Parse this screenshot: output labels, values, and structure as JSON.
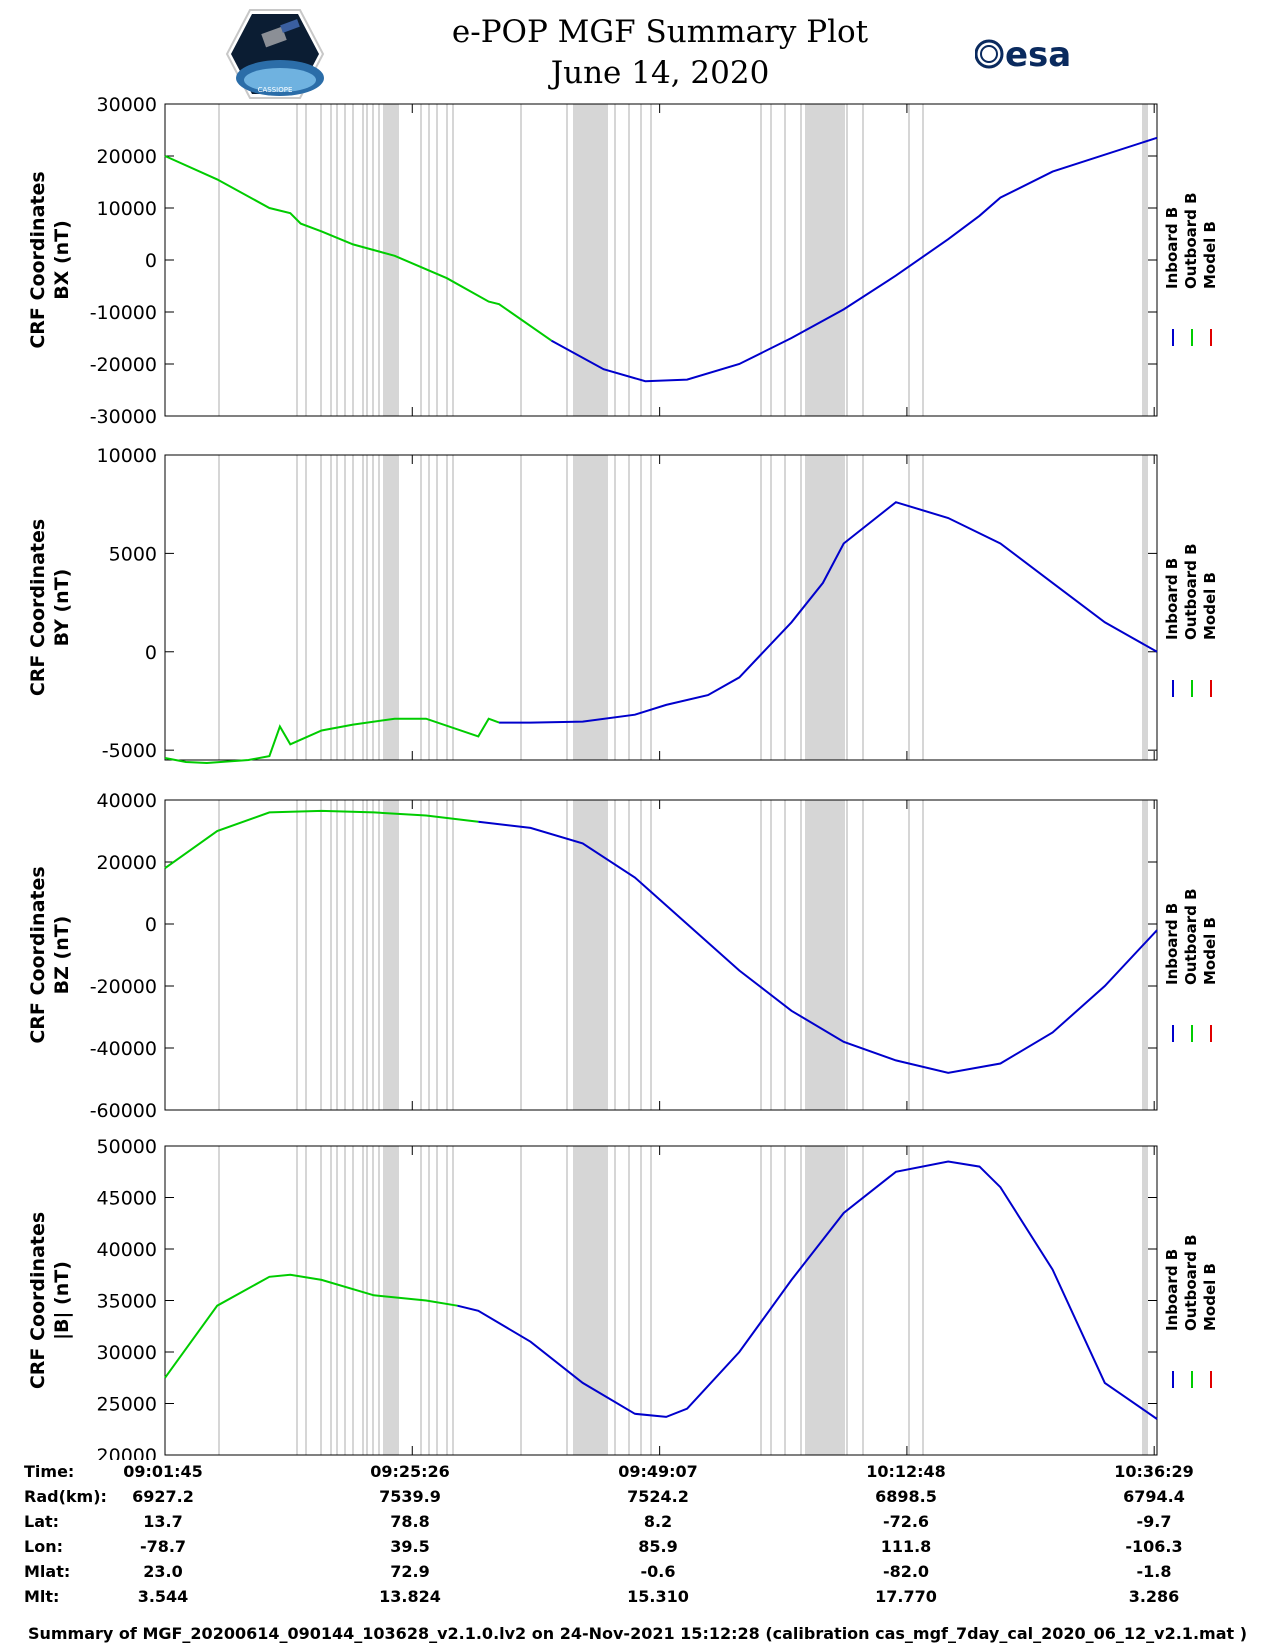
{
  "title": {
    "line1": "e-POP MGF Summary Plot",
    "line2": "June 14, 2020"
  },
  "logos": {
    "left": "CASSIOPE",
    "right": "esa"
  },
  "colors": {
    "inboard": "#0000cc",
    "outboard": "#00cc00",
    "model": "#e00000",
    "shade": "#d6d6d6"
  },
  "legend": [
    "Inboard B",
    "Outboard B",
    "Model B"
  ],
  "time_ticks": [
    "09:01:45",
    "09:25:26",
    "09:49:07",
    "10:12:48",
    "10:36:29"
  ],
  "info_table": [
    {
      "label": "Time:",
      "values": [
        "09:01:45",
        "09:25:26",
        "09:49:07",
        "10:12:48",
        "10:36:29"
      ]
    },
    {
      "label": "Rad(km):",
      "values": [
        "6927.2",
        "7539.9",
        "7524.2",
        "6898.5",
        "6794.4"
      ]
    },
    {
      "label": "Lat:",
      "values": [
        "13.7",
        "78.8",
        "8.2",
        "-72.6",
        "-9.7"
      ]
    },
    {
      "label": "Lon:",
      "values": [
        "-78.7",
        "39.5",
        "85.9",
        "111.8",
        "-106.3"
      ]
    },
    {
      "label": "Mlat:",
      "values": [
        "23.0",
        "72.9",
        "-0.6",
        "-82.0",
        "-1.8"
      ]
    },
    {
      "label": "Mlt:",
      "values": [
        "3.544",
        "13.824",
        "15.310",
        "17.770",
        "3.286"
      ]
    }
  ],
  "caption": "Summary of MGF_20200614_090144_103628_v2.1.0.lv2 on 24-Nov-2021 15:12:28 (calibration cas_mgf_7day_cal_2020_06_12_v2.1.mat )",
  "chart_data": [
    {
      "type": "line",
      "ylabel": [
        "CRF Coordinates",
        "BX (nT)"
      ],
      "ylim": [
        -30000,
        30000
      ],
      "yticks": [
        "30000",
        "20000",
        "10000",
        "0",
        "-10000",
        "-20000",
        "-30000"
      ],
      "x_minutes": [
        0,
        5,
        10,
        12,
        13,
        15,
        18,
        22,
        27,
        31,
        32,
        37,
        42,
        46,
        50,
        55,
        60,
        65,
        70,
        75,
        78,
        80,
        85,
        95
      ],
      "inboard": [
        null,
        null,
        null,
        null,
        null,
        null,
        null,
        null,
        null,
        null,
        null,
        -15500,
        -21000,
        -23300,
        -23000,
        -20000,
        -15000,
        -9500,
        -3000,
        4000,
        8500,
        12000,
        17000,
        23500
      ],
      "outboard": [
        20000,
        15500,
        10000,
        9000,
        7000,
        5500,
        3000,
        800,
        -3500,
        -8000,
        -8500,
        -15500,
        null,
        null,
        null,
        null,
        null,
        null,
        null,
        null,
        null,
        null,
        null,
        null
      ]
    },
    {
      "type": "line",
      "ylabel": [
        "CRF Coordinates",
        "BY (nT)"
      ],
      "ylim": [
        -5500,
        10000
      ],
      "yticks": [
        "10000",
        "5000",
        "0",
        "-5000"
      ],
      "x_minutes": [
        0,
        2,
        4,
        8,
        10,
        11,
        12,
        15,
        18,
        22,
        25,
        30,
        31,
        32,
        35,
        40,
        45,
        48,
        52,
        55,
        60,
        63,
        65,
        70,
        75,
        80,
        85,
        90,
        95
      ],
      "inboard": [
        null,
        null,
        null,
        null,
        null,
        null,
        null,
        null,
        null,
        null,
        null,
        null,
        null,
        -3600,
        -3600,
        -3550,
        -3200,
        -2700,
        -2200,
        -1300,
        1500,
        3500,
        5500,
        7600,
        6800,
        5500,
        3500,
        1500,
        0
      ],
      "outboard": [
        -5400,
        -5600,
        -5650,
        -5500,
        -5300,
        -3800,
        -4700,
        -4000,
        -3700,
        -3400,
        -3400,
        -4300,
        -3400,
        -3600,
        null,
        null,
        null,
        null,
        null,
        null,
        null,
        null,
        null,
        null,
        null,
        null,
        null,
        null,
        null
      ]
    },
    {
      "type": "line",
      "ylabel": [
        "CRF Coordinates",
        "BZ (nT)"
      ],
      "ylim": [
        -60000,
        40000
      ],
      "yticks": [
        "40000",
        "20000",
        "0",
        "-20000",
        "-40000",
        "-60000"
      ],
      "x_minutes": [
        0,
        5,
        10,
        15,
        20,
        25,
        30,
        35,
        40,
        45,
        50,
        55,
        60,
        65,
        70,
        75,
        80,
        85,
        90,
        95
      ],
      "inboard": [
        null,
        null,
        null,
        null,
        null,
        null,
        33000,
        31000,
        26000,
        15000,
        0,
        -15000,
        -28000,
        -38000,
        -44000,
        -48000,
        -45000,
        -35000,
        -20000,
        -2000
      ],
      "outboard": [
        18000,
        30000,
        36000,
        36500,
        36000,
        35000,
        33000,
        null,
        null,
        null,
        null,
        null,
        null,
        null,
        null,
        null,
        null,
        null,
        null,
        null
      ]
    },
    {
      "type": "line",
      "ylabel": [
        "CRF Coordinates",
        "|B| (nT)"
      ],
      "ylim": [
        20000,
        50000
      ],
      "yticks": [
        "50000",
        "45000",
        "40000",
        "35000",
        "30000",
        "25000",
        "20000"
      ],
      "x_minutes": [
        0,
        5,
        10,
        12,
        15,
        20,
        25,
        28,
        30,
        35,
        40,
        45,
        48,
        50,
        55,
        60,
        65,
        70,
        75,
        78,
        80,
        85,
        90,
        95
      ],
      "inboard": [
        null,
        null,
        null,
        null,
        null,
        null,
        null,
        34500,
        34000,
        31000,
        27000,
        24000,
        23700,
        24500,
        30000,
        37000,
        43500,
        47500,
        48500,
        48000,
        46000,
        38000,
        27000,
        23500
      ],
      "outboard": [
        27500,
        34500,
        37300,
        37500,
        37000,
        35500,
        35000,
        34500,
        null,
        null,
        null,
        null,
        null,
        null,
        null,
        null,
        null,
        null,
        null,
        null,
        null,
        null,
        null,
        null
      ]
    }
  ]
}
